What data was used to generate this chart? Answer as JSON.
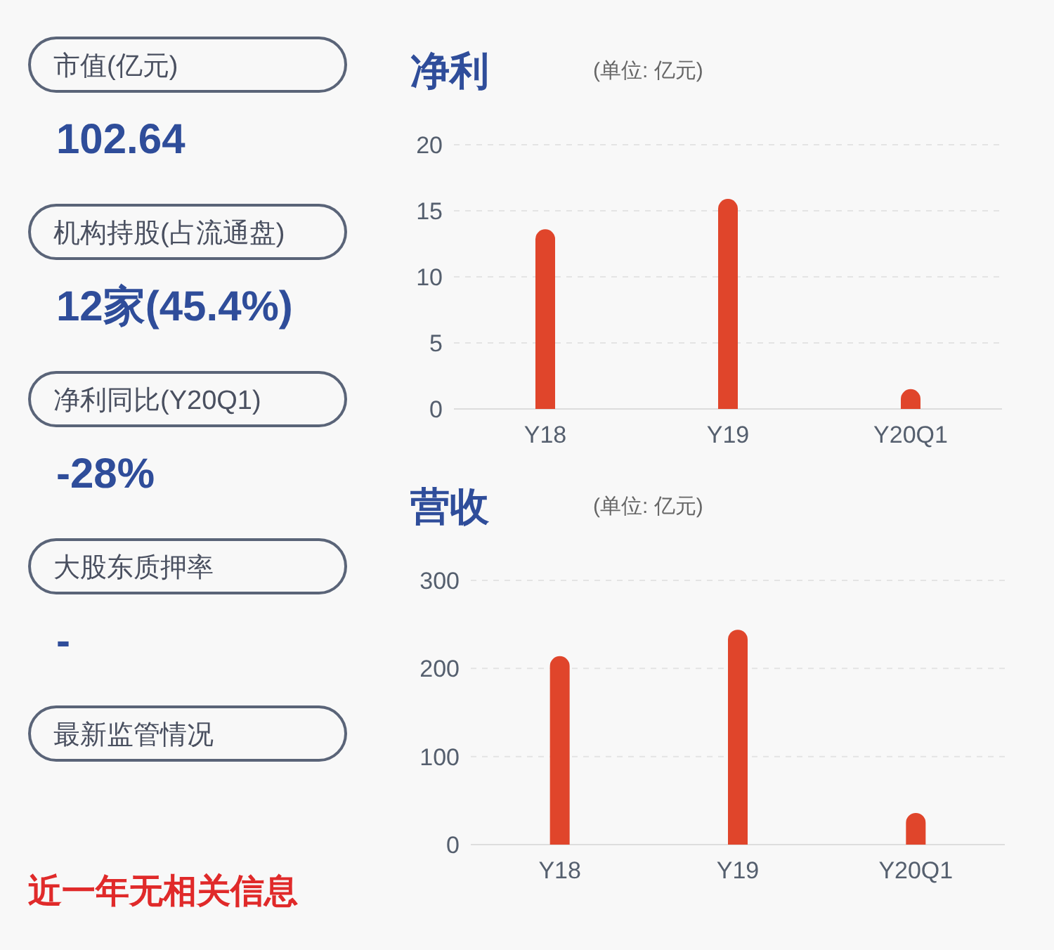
{
  "chart_data": [
    {
      "type": "other",
      "annotations": [
        "市值(亿元)",
        "102.64",
        "机构持股(占流通盘)",
        "12家(45.4%)",
        "净利同比(Y20Q1)",
        "-28%",
        "大股东质押率",
        "-",
        "最新监管情况",
        "近一年无相关信息"
      ]
    },
    {
      "type": "bar",
      "title": "净利",
      "subtitle": "(单位: 亿元)",
      "categories": [
        "Y18",
        "Y19",
        "Y20Q1"
      ],
      "values": [
        13.6,
        15.9,
        1.5
      ],
      "color": "#e0452b",
      "ylim": [
        0,
        20
      ],
      "yticks": [
        0,
        5,
        10,
        15,
        20
      ],
      "grid": "y"
    },
    {
      "type": "bar",
      "title": "营收",
      "subtitle": "(单位: 亿元)",
      "categories": [
        "Y18",
        "Y19",
        "Y20Q1"
      ],
      "values": [
        214,
        244,
        36
      ],
      "color": "#e0452b",
      "ylim": [
        0,
        300
      ],
      "yticks": [
        0,
        100,
        200,
        300
      ],
      "grid": "y"
    }
  ]
}
